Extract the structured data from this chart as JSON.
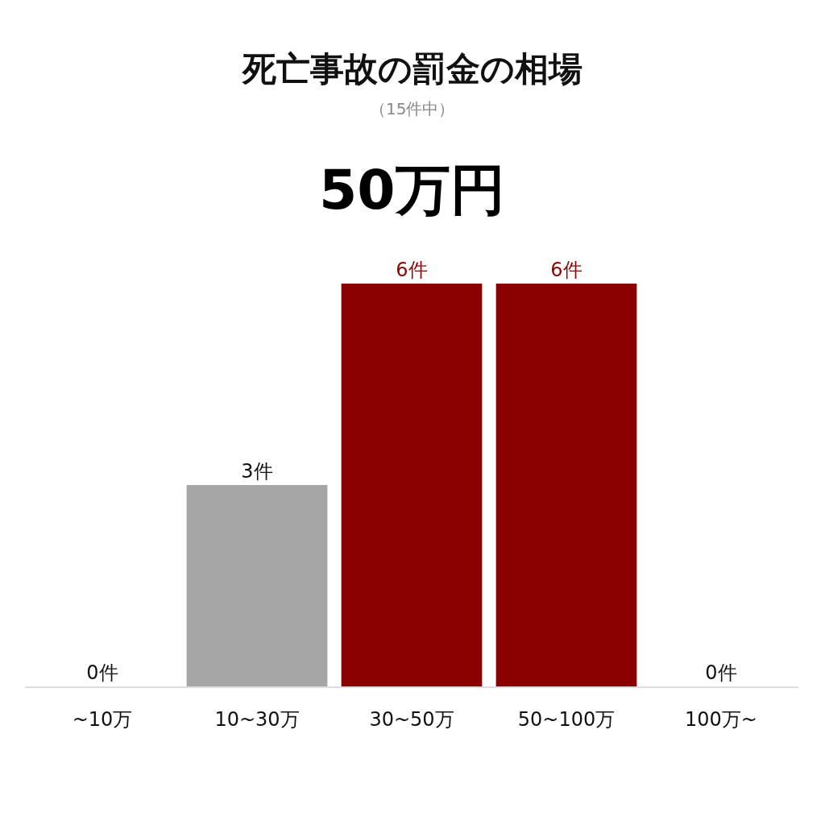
{
  "chart_data": {
    "type": "bar",
    "title": "死亡事故の罰金の相場",
    "subtitle": "（15件中）",
    "annotations": [
      "50万円"
    ],
    "categories": [
      "~10万",
      "10~30万",
      "30~50万",
      "50~100万",
      "100万~"
    ],
    "values": [
      0,
      3,
      6,
      6,
      0
    ],
    "colors": [
      "#a6a6a6",
      "#a6a6a6",
      "#8b0000",
      "#8b0000",
      "#a6a6a6"
    ],
    "value_labels": [
      "0件",
      "3件",
      "6件",
      "6件",
      "0件"
    ]
  }
}
